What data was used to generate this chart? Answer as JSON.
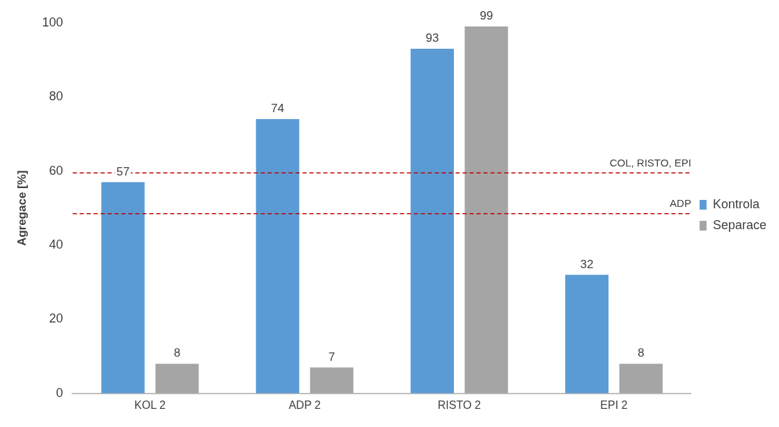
{
  "chart_data": {
    "type": "bar",
    "ylabel": "Agregace [%]",
    "categories": [
      "KOL 2",
      "ADP 2",
      "RISTO 2",
      "EPI 2"
    ],
    "series": [
      {
        "name": "Kontrola",
        "color": "#5b9bd5",
        "values": [
          57,
          74,
          93,
          32
        ]
      },
      {
        "name": "Separace",
        "color": "#a5a5a5",
        "values": [
          8,
          7,
          99,
          8
        ]
      }
    ],
    "ylim": [
      0,
      100
    ],
    "yticks": [
      0,
      20,
      40,
      60,
      80,
      100
    ],
    "grid": false,
    "legend": "right",
    "data_labels": true,
    "ref_lines": [
      {
        "axis": "y",
        "value": 59.5,
        "label": "COL, RISTO, EPI",
        "color": "#c00000",
        "line_style": "dashed"
      },
      {
        "axis": "y",
        "value": 48.5,
        "label": "ADP",
        "color": "#c00000",
        "line_style": "dashed"
      }
    ]
  }
}
